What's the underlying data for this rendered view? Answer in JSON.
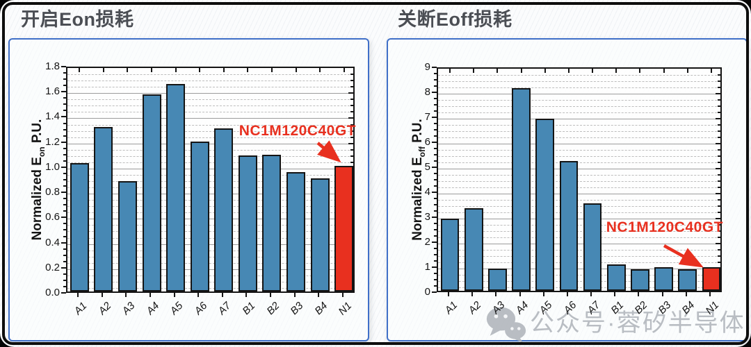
{
  "figure": {
    "left_title": "开启Eon损耗",
    "right_title": "关断Eoff损耗"
  },
  "watermark": {
    "icon": "wechat-icon",
    "text": "公众号·蓉矽半导体"
  },
  "colors": {
    "bar": "#4788b4",
    "highlight": "#e8301f",
    "annotation": "#e8301f",
    "panel_border": "#3f6fc8",
    "major_grid": "#9b9b9b",
    "minor_grid": "#bdbdbd"
  },
  "chart_data": [
    {
      "type": "bar",
      "title": "开启Eon损耗",
      "xlabel": "",
      "ylabel": "Normalized E_on P.U.",
      "ylabel_parts": {
        "prefix": "Normalized E",
        "sub": "on",
        "suffix": " P.U."
      },
      "categories": [
        "A1",
        "A2",
        "A3",
        "A4",
        "A5",
        "A6",
        "A7",
        "B1",
        "B2",
        "B3",
        "B4",
        "N1"
      ],
      "values": [
        1.02,
        1.31,
        0.88,
        1.57,
        1.65,
        1.19,
        1.3,
        1.08,
        1.09,
        0.95,
        0.9,
        1.0
      ],
      "ylim": [
        0,
        1.8
      ],
      "ytick_labels": [
        "0.0",
        "0.2",
        "0.4",
        "0.6",
        "0.8",
        "1.0",
        "1.2",
        "1.4",
        "1.6",
        "1.8"
      ],
      "minor_step": 0.05,
      "grid": true,
      "legend": "none",
      "highlight_category": "N1",
      "highlight_index": 11,
      "annotation": "NC1M120C40GT"
    },
    {
      "type": "bar",
      "title": "关断Eoff损耗",
      "xlabel": "",
      "ylabel": "Normalized E_off P.U.",
      "ylabel_parts": {
        "prefix": "Normalized E",
        "sub": "off",
        "suffix": " P.U."
      },
      "categories": [
        "A1",
        "A2",
        "A3",
        "A4",
        "A5",
        "A6",
        "A7",
        "B1",
        "B2",
        "B3",
        "B4",
        "N1"
      ],
      "values": [
        2.9,
        3.3,
        0.9,
        8.1,
        6.9,
        5.2,
        3.5,
        1.05,
        0.85,
        0.95,
        0.85,
        0.95
      ],
      "ylim": [
        0,
        9
      ],
      "ytick_labels": [
        "0",
        "1",
        "2",
        "3",
        "4",
        "5",
        "6",
        "7",
        "8",
        "9"
      ],
      "minor_step": 0.25,
      "grid": true,
      "legend": "none",
      "highlight_category": "N1",
      "highlight_index": 11,
      "annotation": "NC1M120C40GT"
    }
  ]
}
